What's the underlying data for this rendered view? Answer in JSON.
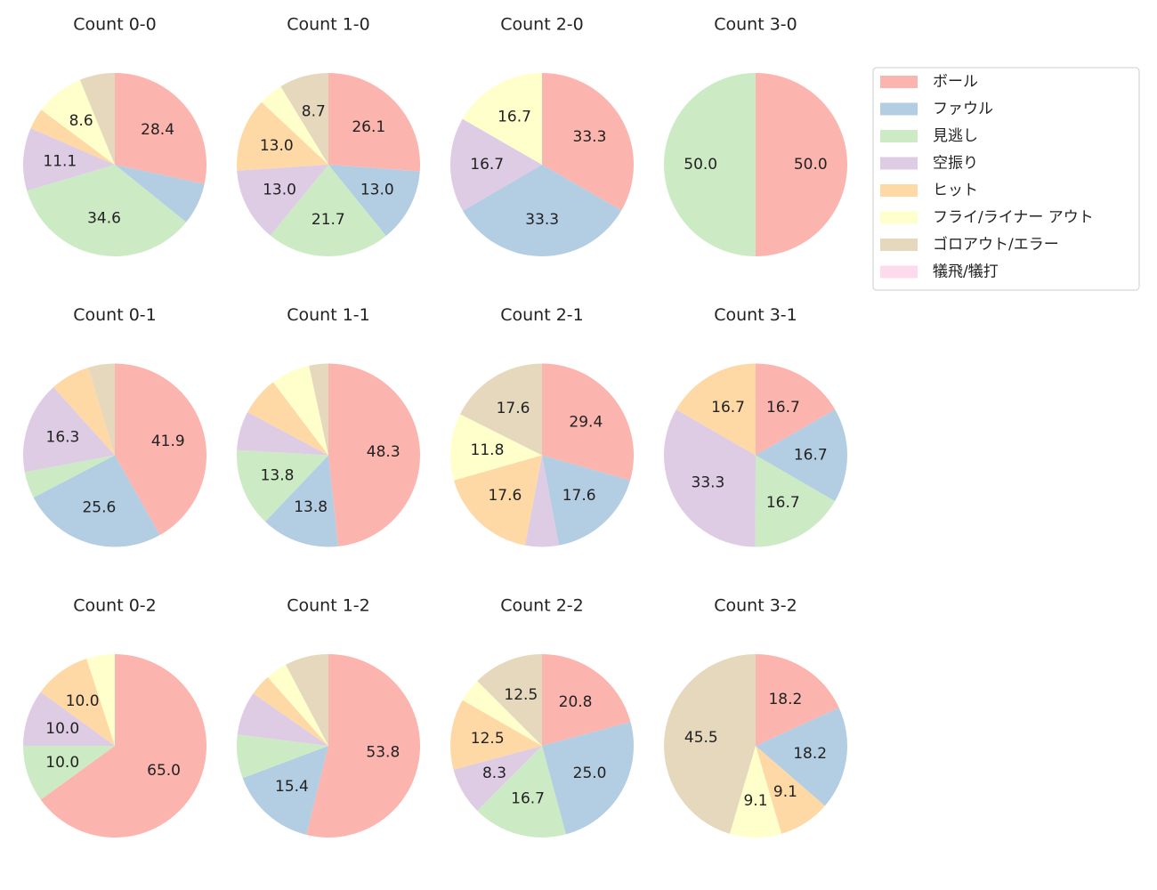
{
  "legend": {
    "categories": [
      "ボール",
      "ファウル",
      "見逃し",
      "空振り",
      "ヒット",
      "フライ/ライナー アウト",
      "ゴロアウト/エラー",
      "犠飛/犠打"
    ],
    "colors": [
      "#fbb4ae",
      "#b3cde3",
      "#ccebc5",
      "#decbe4",
      "#fed9a6",
      "#ffffcc",
      "#e5d8bd",
      "#fddaec"
    ]
  },
  "chart_data": [
    {
      "type": "pie",
      "title": "Count 0-0",
      "values": [
        28.4,
        7.4,
        34.6,
        11.1,
        3.7,
        8.6,
        6.2,
        0
      ],
      "value_labels": [
        "28.4",
        null,
        "34.6",
        "11.1",
        null,
        "8.6",
        null,
        null
      ]
    },
    {
      "type": "pie",
      "title": "Count 1-0",
      "values": [
        26.1,
        13.0,
        21.7,
        13.0,
        13.0,
        4.3,
        8.7,
        0
      ],
      "value_labels": [
        "26.1",
        "13.0",
        "21.7",
        "13.0",
        "13.0",
        null,
        "8.7",
        null
      ]
    },
    {
      "type": "pie",
      "title": "Count 2-0",
      "values": [
        33.3,
        33.3,
        0,
        16.7,
        0,
        16.7,
        0,
        0
      ],
      "value_labels": [
        "33.3",
        "33.3",
        null,
        "16.7",
        null,
        "16.7",
        null,
        null
      ]
    },
    {
      "type": "pie",
      "title": "Count 3-0",
      "values": [
        50.0,
        0,
        50.0,
        0,
        0,
        0,
        0,
        0
      ],
      "value_labels": [
        "50.0",
        null,
        "50.0",
        null,
        null,
        null,
        null,
        null
      ]
    },
    {
      "type": "pie",
      "title": "Count 0-1",
      "values": [
        41.9,
        25.6,
        4.7,
        16.3,
        7.0,
        0,
        4.7,
        0
      ],
      "value_labels": [
        "41.9",
        "25.6",
        null,
        "16.3",
        null,
        null,
        null,
        null
      ]
    },
    {
      "type": "pie",
      "title": "Count 1-1",
      "values": [
        48.3,
        13.8,
        13.8,
        6.9,
        6.9,
        6.9,
        3.4,
        0
      ],
      "value_labels": [
        "48.3",
        "13.8",
        "13.8",
        null,
        null,
        null,
        null,
        null
      ]
    },
    {
      "type": "pie",
      "title": "Count 2-1",
      "values": [
        29.4,
        17.6,
        0,
        5.9,
        17.6,
        11.8,
        17.6,
        0
      ],
      "value_labels": [
        "29.4",
        "17.6",
        null,
        null,
        "17.6",
        "11.8",
        "17.6",
        null
      ]
    },
    {
      "type": "pie",
      "title": "Count 3-1",
      "values": [
        16.7,
        16.7,
        16.7,
        33.3,
        16.7,
        0,
        0,
        0
      ],
      "value_labels": [
        "16.7",
        "16.7",
        "16.7",
        "33.3",
        "16.7",
        null,
        null,
        null
      ]
    },
    {
      "type": "pie",
      "title": "Count 0-2",
      "values": [
        65.0,
        0,
        10.0,
        10.0,
        10.0,
        5.0,
        0,
        0
      ],
      "value_labels": [
        "65.0",
        null,
        "10.0",
        "10.0",
        "10.0",
        null,
        null,
        null
      ]
    },
    {
      "type": "pie",
      "title": "Count 1-2",
      "values": [
        53.8,
        15.4,
        7.7,
        7.7,
        3.8,
        3.8,
        7.7,
        0
      ],
      "value_labels": [
        "53.8",
        "15.4",
        null,
        null,
        null,
        null,
        null,
        null
      ]
    },
    {
      "type": "pie",
      "title": "Count 2-2",
      "values": [
        20.8,
        25.0,
        16.7,
        8.3,
        12.5,
        4.2,
        12.5,
        0
      ],
      "value_labels": [
        "20.8",
        "25.0",
        "16.7",
        "8.3",
        "12.5",
        null,
        "12.5",
        null
      ]
    },
    {
      "type": "pie",
      "title": "Count 3-2",
      "values": [
        18.2,
        18.2,
        0,
        0,
        9.1,
        9.1,
        45.5,
        0
      ],
      "value_labels": [
        "18.2",
        "18.2",
        null,
        null,
        "9.1",
        "9.1",
        "45.5",
        null
      ]
    }
  ]
}
